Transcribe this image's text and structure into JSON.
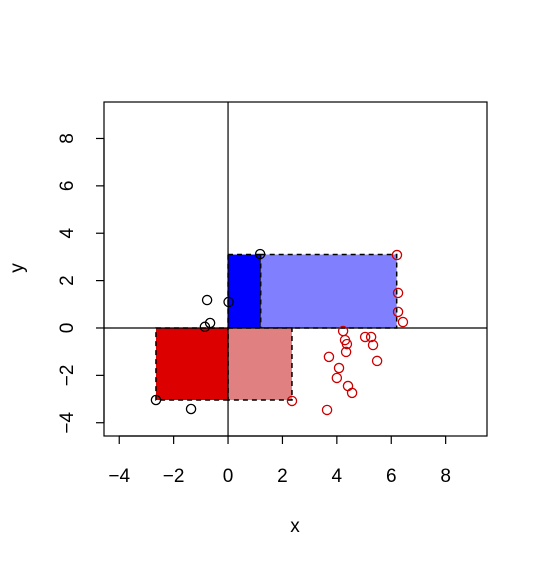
{
  "chart_data": {
    "type": "scatter",
    "x_label": "x",
    "y_label": "y",
    "xlim": [
      -4.56,
      9.52
    ],
    "ylim": [
      -4.56,
      9.54
    ],
    "xticks": [
      {
        "value": -4,
        "label": "−4"
      },
      {
        "value": -2,
        "label": "−2"
      },
      0,
      2,
      4,
      6,
      8
    ],
    "yticks": [
      {
        "value": -4,
        "label": "−4"
      },
      {
        "value": -2,
        "label": "−2"
      },
      0,
      2,
      4,
      6,
      8
    ],
    "reference_lines": {
      "x": 0,
      "y": 0
    },
    "rectangles": [
      {
        "xmin": 0,
        "xmax": 1.2,
        "ymin": 0,
        "ymax": 3.1,
        "color": "#0000ff"
      },
      {
        "xmin": 1.2,
        "xmax": 6.2,
        "ymin": 0,
        "ymax": 3.1,
        "color": "#8080ff"
      },
      {
        "xmin": -2.65,
        "xmax": 0,
        "ymin": -3.04,
        "ymax": 0,
        "color": "#dd0000"
      },
      {
        "xmin": 0,
        "xmax": 2.35,
        "ymin": -3.04,
        "ymax": 0,
        "color": "#e08080"
      }
    ],
    "series": [
      {
        "color": "#000000",
        "x": [
          1.18,
          -0.77,
          -0.66,
          -0.85,
          0.02,
          -2.65,
          -1.36
        ],
        "values": [
          3.12,
          1.18,
          0.21,
          0.05,
          1.1,
          -3.04,
          -3.42
        ]
      },
      {
        "color": "#cc0000",
        "x": [
          6.21,
          6.25,
          6.25,
          6.43,
          4.23,
          4.3,
          4.37,
          4.34,
          5.04,
          5.26,
          5.33,
          5.48,
          3.71,
          4.08,
          4.0,
          4.41,
          4.56,
          3.64,
          2.35
        ],
        "values": [
          3.08,
          1.48,
          0.68,
          0.25,
          -0.13,
          -0.51,
          -0.68,
          -1.01,
          -0.38,
          -0.38,
          -0.72,
          -1.39,
          -1.22,
          -1.69,
          -2.11,
          -2.45,
          -2.74,
          -3.46,
          -3.08
        ]
      }
    ]
  }
}
